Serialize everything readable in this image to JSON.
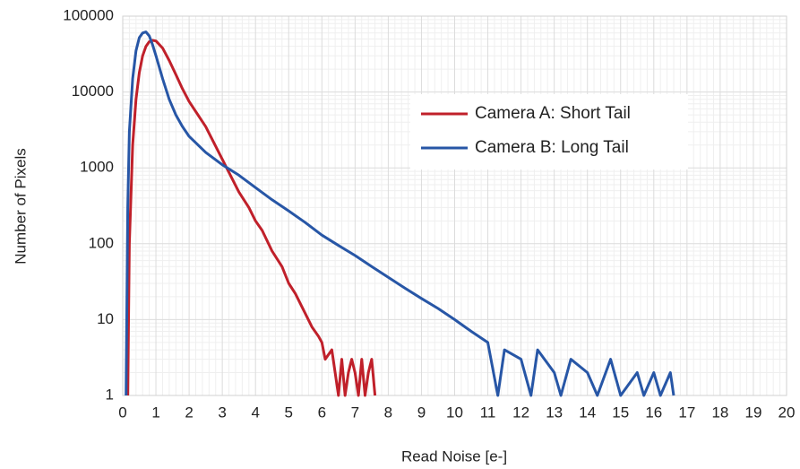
{
  "chart_data": {
    "type": "line",
    "xlabel": "Read Noise [e-]",
    "ylabel": "Number of Pixels",
    "xlim": [
      0,
      20
    ],
    "xticks": [
      0,
      1,
      2,
      3,
      4,
      5,
      6,
      7,
      8,
      9,
      10,
      11,
      12,
      13,
      14,
      15,
      16,
      17,
      18,
      19,
      20
    ],
    "ylim": [
      1,
      100000
    ],
    "yticks": [
      1,
      10,
      100,
      1000,
      10000,
      100000
    ],
    "ylog": true,
    "grid": true,
    "legend": "right",
    "series": [
      {
        "name": "Camera A: Short Tail",
        "color": "#c0202a",
        "x": [
          0.15,
          0.2,
          0.3,
          0.4,
          0.5,
          0.6,
          0.7,
          0.8,
          0.9,
          1.0,
          1.2,
          1.4,
          1.6,
          1.8,
          2.0,
          2.5,
          3.0,
          3.5,
          3.8,
          4.0,
          4.2,
          4.5,
          4.8,
          5.0,
          5.2,
          5.5,
          5.7,
          5.9,
          6.0,
          6.1,
          6.3,
          6.4,
          6.5,
          6.6,
          6.7,
          6.8,
          6.9,
          7.0,
          7.1,
          7.2,
          7.3,
          7.4,
          7.5,
          7.6
        ],
        "values": [
          1,
          100,
          2000,
          8000,
          18000,
          30000,
          40000,
          46000,
          48000,
          47000,
          38000,
          26000,
          17000,
          11000,
          7500,
          3500,
          1300,
          480,
          300,
          200,
          150,
          80,
          50,
          30,
          22,
          12,
          8,
          6,
          5,
          3,
          4,
          2,
          1,
          3,
          1,
          2,
          3,
          2,
          1,
          3,
          1,
          2,
          3,
          1
        ]
      },
      {
        "name": "Camera B: Long Tail",
        "color": "#2756a6",
        "x": [
          0.1,
          0.15,
          0.2,
          0.3,
          0.4,
          0.5,
          0.6,
          0.7,
          0.8,
          0.9,
          1.0,
          1.2,
          1.4,
          1.6,
          1.8,
          2.0,
          2.5,
          3.0,
          3.5,
          4.0,
          4.5,
          5.0,
          5.5,
          6.0,
          6.5,
          7.0,
          7.5,
          8.0,
          8.5,
          9.0,
          9.5,
          10.0,
          10.5,
          11.0,
          11.3,
          11.5,
          12.0,
          12.3,
          12.5,
          13.0,
          13.2,
          13.5,
          14.0,
          14.3,
          14.7,
          15.0,
          15.5,
          15.7,
          16.0,
          16.2,
          16.5,
          16.6
        ],
        "values": [
          1,
          300,
          3000,
          15000,
          35000,
          52000,
          60000,
          62000,
          55000,
          42000,
          30000,
          15000,
          8000,
          5000,
          3500,
          2600,
          1600,
          1100,
          800,
          550,
          380,
          270,
          190,
          130,
          95,
          70,
          50,
          36,
          26,
          19,
          14,
          10,
          7,
          5,
          1,
          4,
          3,
          1,
          4,
          2,
          1,
          3,
          2,
          1,
          3,
          1,
          2,
          1,
          2,
          1,
          2,
          1
        ]
      }
    ]
  }
}
